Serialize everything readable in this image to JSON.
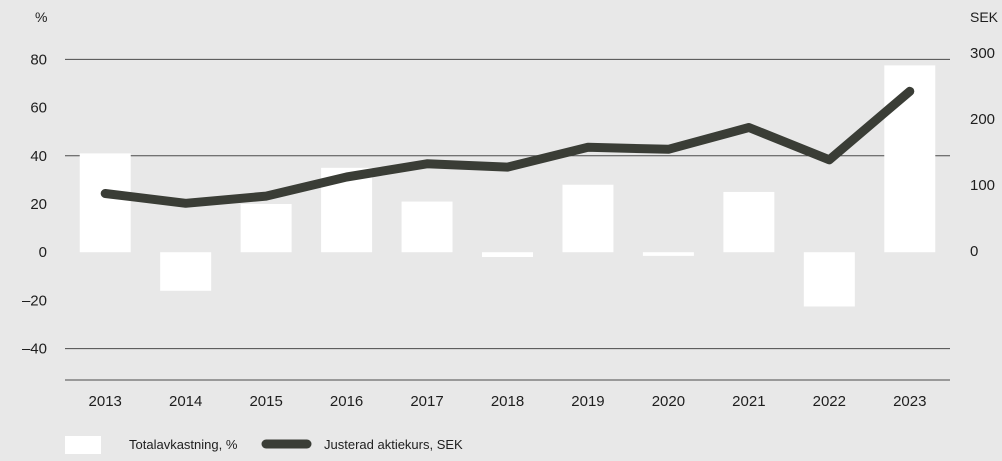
{
  "chart_data": {
    "type": "bar+line",
    "categories": [
      "2013",
      "2014",
      "2015",
      "2016",
      "2017",
      "2018",
      "2019",
      "2020",
      "2021",
      "2022",
      "2023"
    ],
    "series": [
      {
        "name": "Totalavkastning, %",
        "type": "bar",
        "axis": "left",
        "color": "#ffffff",
        "values": [
          41,
          -16,
          20,
          35,
          21,
          -2,
          28,
          -1.5,
          25,
          -22.5,
          77.5
        ]
      },
      {
        "name": "Justerad aktiekurs, SEK",
        "type": "line",
        "axis": "right",
        "color": "#3a3d36",
        "values": [
          87,
          72,
          83,
          112,
          132,
          127,
          157,
          154,
          187,
          138,
          242
        ]
      }
    ],
    "left_axis": {
      "unit_label": "%",
      "ylim": [
        -53,
        93
      ],
      "ticks": [
        80,
        60,
        40,
        20,
        0,
        -20,
        -40
      ],
      "tick_labels": [
        "80",
        "60",
        "40",
        "20",
        "0",
        "–20",
        "–40"
      ]
    },
    "right_axis": {
      "unit_label": "SEK",
      "ylim": [
        -196,
        338
      ],
      "ticks": [
        300,
        200,
        100,
        0
      ],
      "tick_labels": [
        "300",
        "200",
        "100",
        "0"
      ]
    },
    "gridlines": [
      80,
      40,
      -40
    ],
    "baseline": -53,
    "legend_position": "bottom-left"
  }
}
